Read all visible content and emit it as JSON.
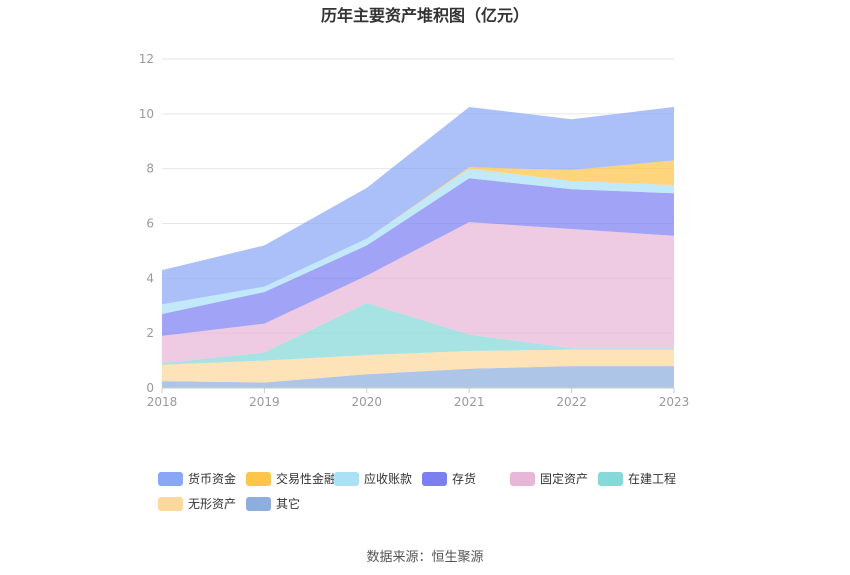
{
  "chart_data": {
    "type": "area",
    "stacked": true,
    "title": "历年主要资产堆积图（亿元）",
    "x": [
      "2018",
      "2019",
      "2020",
      "2021",
      "2022",
      "2023"
    ],
    "ylim": [
      0,
      12
    ],
    "yticks": [
      0,
      2,
      4,
      6,
      8,
      10,
      12
    ],
    "grid": true,
    "legend_position": "bottom",
    "series": [
      {
        "name": "其它",
        "color": "#8eaede",
        "values": [
          0.25,
          0.2,
          0.5,
          0.7,
          0.8,
          0.8
        ]
      },
      {
        "name": "无形资产",
        "color": "#fdd89e",
        "values": [
          0.6,
          0.8,
          0.7,
          0.65,
          0.6,
          0.6
        ]
      },
      {
        "name": "在建工程",
        "color": "#87d8d8",
        "values": [
          0.05,
          0.3,
          1.9,
          0.6,
          0.05,
          0.05
        ]
      },
      {
        "name": "固定资产",
        "color": "#e8b7d8",
        "values": [
          1.0,
          1.05,
          1.0,
          4.1,
          4.35,
          4.1
        ]
      },
      {
        "name": "存货",
        "color": "#7b7ff2",
        "values": [
          0.8,
          1.15,
          1.1,
          1.6,
          1.45,
          1.55
        ]
      },
      {
        "name": "应收账款",
        "color": "#abe0f7",
        "values": [
          0.35,
          0.2,
          0.25,
          0.35,
          0.3,
          0.3
        ]
      },
      {
        "name": "交易性金融资产",
        "color": "#fdc54a",
        "values": [
          0.0,
          0.0,
          0.0,
          0.05,
          0.4,
          0.9
        ]
      },
      {
        "name": "货币资金",
        "color": "#8aa7f7",
        "values": [
          1.25,
          1.5,
          1.85,
          2.2,
          1.85,
          1.95
        ]
      }
    ]
  },
  "legend_rows": [
    [
      "货币资金",
      "交易性金融资产",
      "应收账款",
      "存货",
      "固定资产",
      "在建工程"
    ],
    [
      "无形资产",
      "其它"
    ]
  ],
  "source": "数据来源：恒生聚源"
}
